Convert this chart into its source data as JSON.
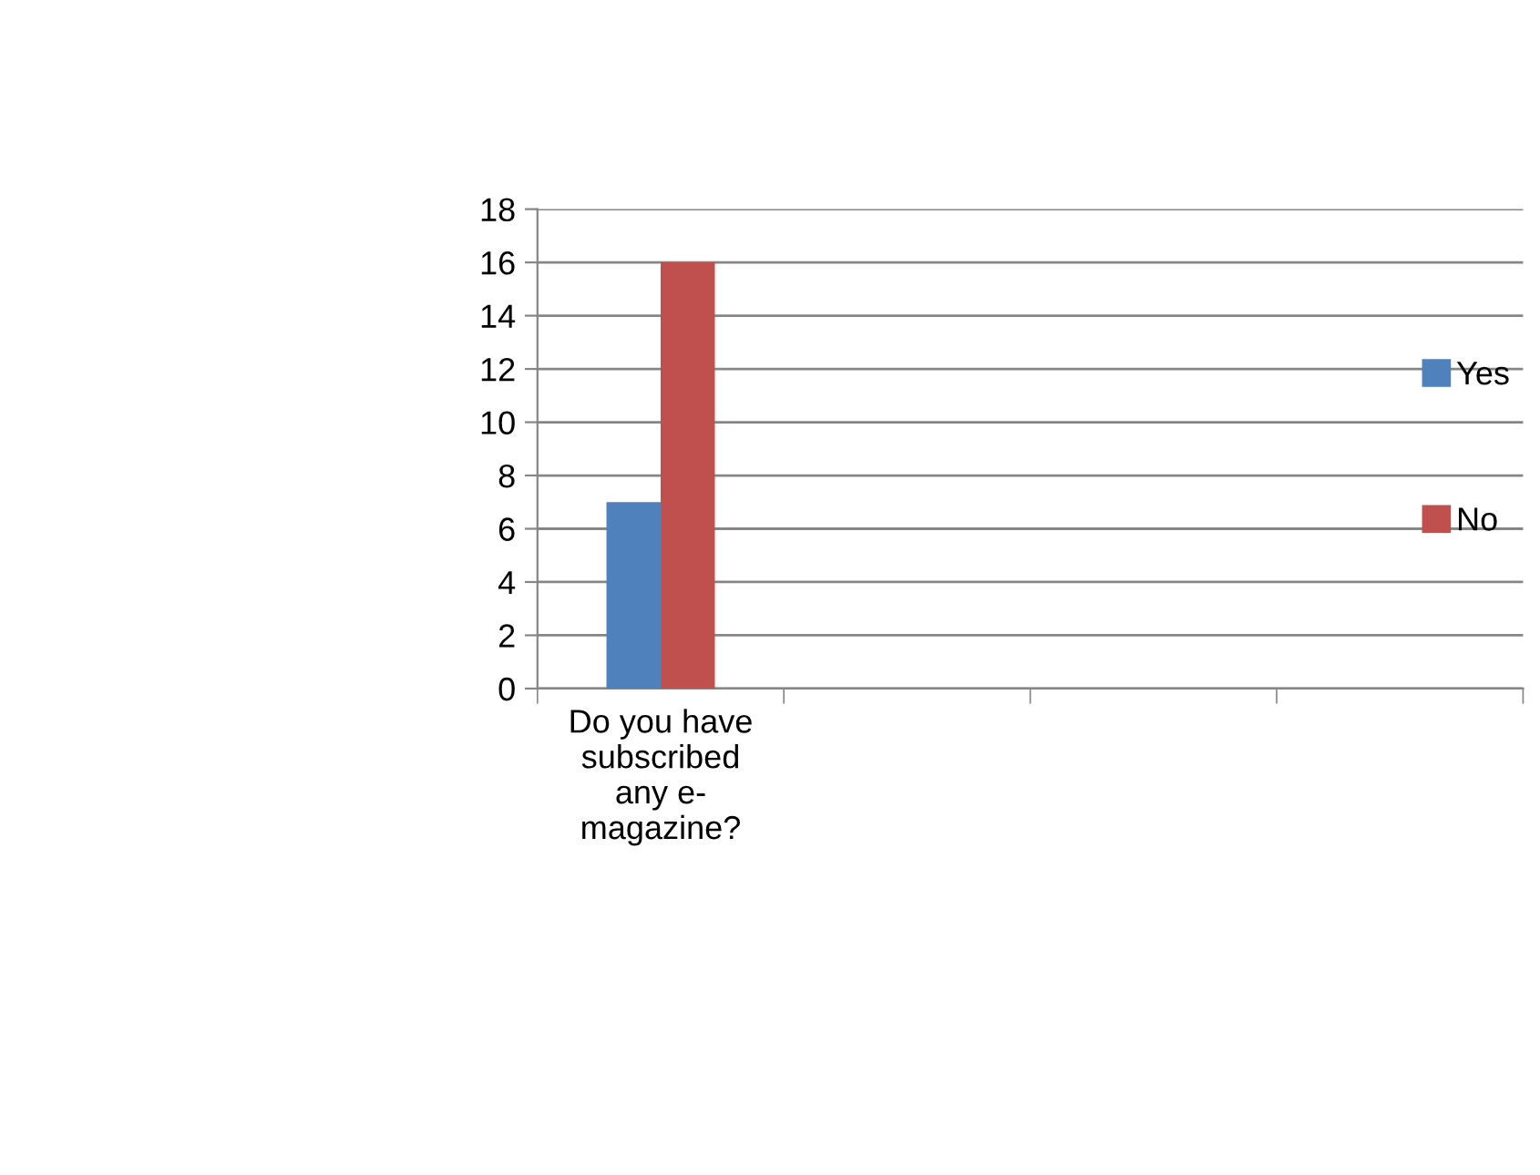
{
  "chart_data": {
    "type": "bar",
    "categories": [
      "Do you have\nsubscribed\nany e-\nmagazine?",
      null,
      null,
      null
    ],
    "series": [
      {
        "name": "Yes",
        "color": "#4f81bd",
        "values": [
          7,
          null,
          null,
          null
        ]
      },
      {
        "name": "No",
        "color": "#c0504d",
        "values": [
          16,
          null,
          null,
          null
        ]
      }
    ],
    "ylim": [
      0,
      18
    ],
    "yticks": [
      0,
      2,
      4,
      6,
      8,
      10,
      12,
      14,
      16,
      18
    ],
    "grid": "y",
    "legend": "right"
  }
}
